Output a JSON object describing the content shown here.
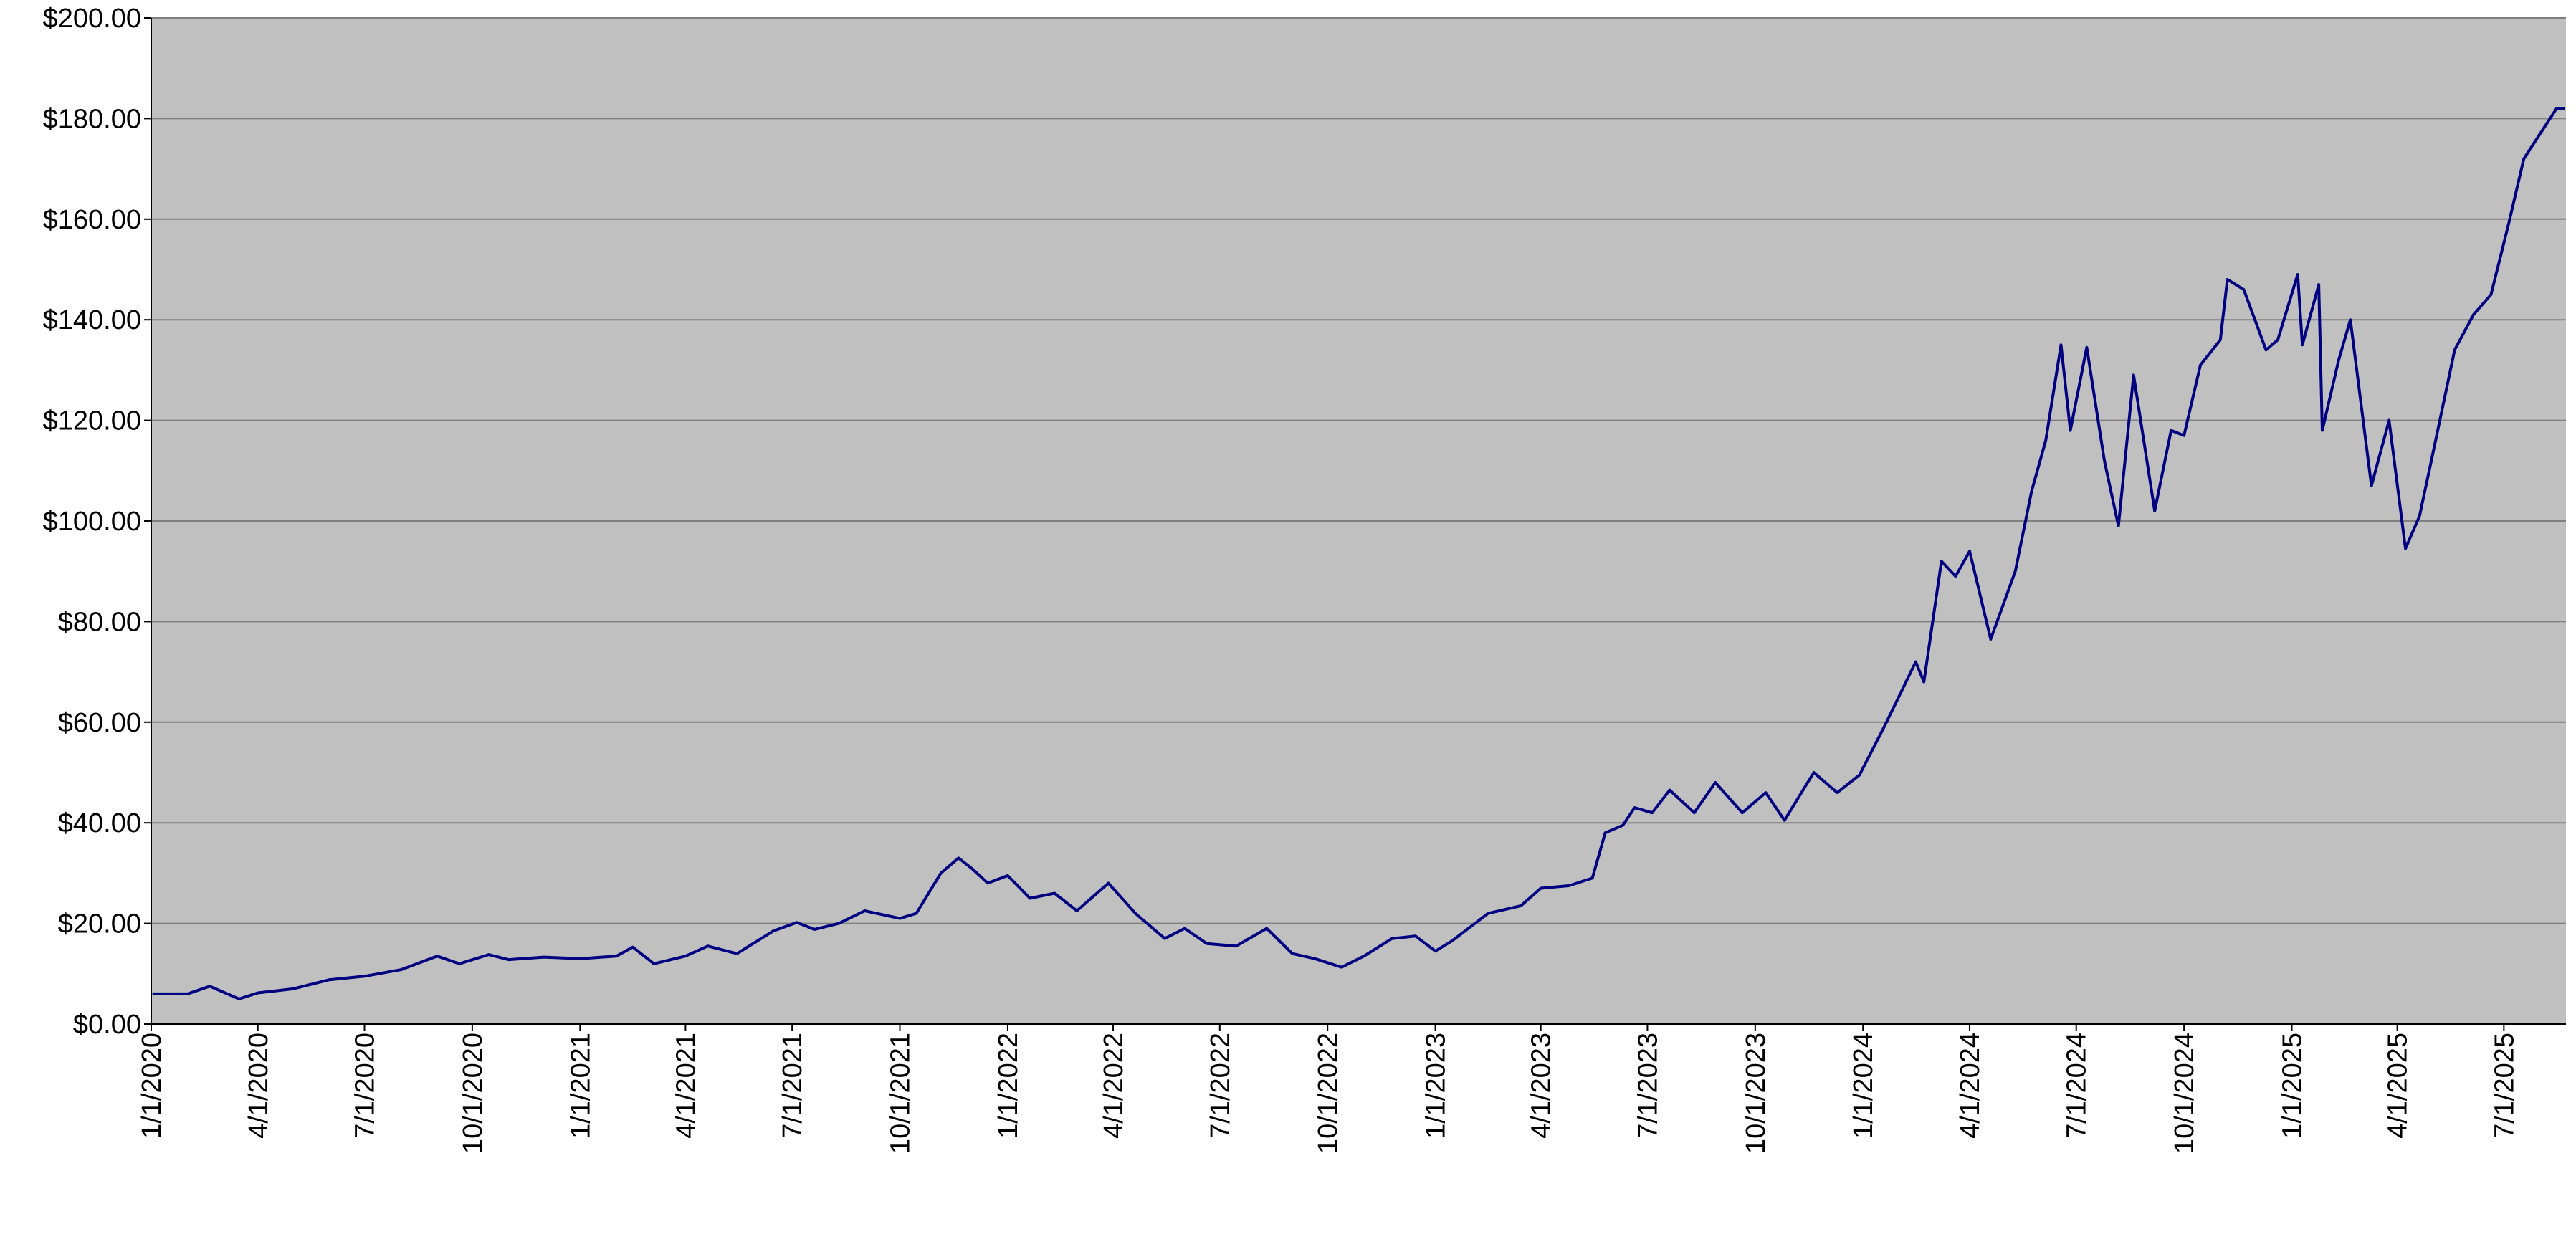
{
  "chart_data": {
    "type": "line",
    "x": [
      "2020-01-02",
      "2020-02-01",
      "2020-02-20",
      "2020-03-16",
      "2020-04-01",
      "2020-05-01",
      "2020-06-01",
      "2020-07-01",
      "2020-08-01",
      "2020-09-01",
      "2020-09-20",
      "2020-10-15",
      "2020-11-01",
      "2020-12-01",
      "2021-01-01",
      "2021-02-01",
      "2021-02-15",
      "2021-03-05",
      "2021-04-01",
      "2021-04-20",
      "2021-05-15",
      "2021-06-15",
      "2021-07-05",
      "2021-07-20",
      "2021-08-10",
      "2021-09-01",
      "2021-10-01",
      "2021-10-15",
      "2021-11-05",
      "2021-11-20",
      "2021-12-01",
      "2021-12-15",
      "2022-01-01",
      "2022-01-20",
      "2022-02-10",
      "2022-03-01",
      "2022-03-28",
      "2022-04-20",
      "2022-05-15",
      "2022-06-01",
      "2022-06-20",
      "2022-07-15",
      "2022-08-10",
      "2022-09-01",
      "2022-09-20",
      "2022-10-13",
      "2022-11-01",
      "2022-11-25",
      "2022-12-15",
      "2023-01-01",
      "2023-01-15",
      "2023-02-15",
      "2023-03-15",
      "2023-04-01",
      "2023-04-25",
      "2023-05-15",
      "2023-05-26",
      "2023-06-10",
      "2023-06-20",
      "2023-07-05",
      "2023-07-20",
      "2023-08-10",
      "2023-08-28",
      "2023-09-20",
      "2023-10-10",
      "2023-10-26",
      "2023-11-20",
      "2023-12-10",
      "2023-12-29",
      "2024-01-20",
      "2024-02-15",
      "2024-02-22",
      "2024-03-08",
      "2024-03-20",
      "2024-04-01",
      "2024-04-19",
      "2024-05-10",
      "2024-05-24",
      "2024-06-05",
      "2024-06-18",
      "2024-06-26",
      "2024-07-10",
      "2024-07-25",
      "2024-08-06",
      "2024-08-19",
      "2024-09-06",
      "2024-09-20",
      "2024-10-01",
      "2024-10-15",
      "2024-11-01",
      "2024-11-07",
      "2024-11-21",
      "2024-12-10",
      "2024-12-20",
      "2025-01-06",
      "2025-01-10",
      "2025-01-24",
      "2025-01-27",
      "2025-02-10",
      "2025-02-20",
      "2025-03-10",
      "2025-03-25",
      "2025-04-08",
      "2025-04-20",
      "2025-05-01",
      "2025-05-20",
      "2025-06-05",
      "2025-06-20",
      "2025-07-05",
      "2025-07-18",
      "2025-08-01",
      "2025-08-15",
      "2025-08-22"
    ],
    "series": [
      {
        "color": "#000080",
        "values": [
          6.0,
          6.0,
          7.5,
          5.0,
          6.2,
          7.0,
          8.8,
          9.5,
          10.8,
          13.5,
          12.0,
          13.8,
          12.8,
          13.3,
          13.0,
          13.5,
          15.3,
          12.0,
          13.5,
          15.5,
          14.0,
          18.5,
          20.2,
          18.8,
          20.0,
          22.5,
          21.0,
          22.0,
          30.0,
          33.0,
          31.0,
          28.0,
          29.5,
          25.0,
          26.0,
          22.5,
          28.0,
          22.0,
          17.0,
          19.0,
          16.0,
          15.5,
          19.0,
          14.0,
          13.0,
          11.3,
          13.5,
          17.0,
          17.5,
          14.5,
          16.5,
          22.0,
          23.5,
          27.0,
          27.5,
          29.0,
          38.0,
          39.5,
          43.0,
          42.0,
          46.5,
          42.0,
          48.0,
          42.0,
          46.0,
          40.5,
          50.0,
          46.0,
          49.5,
          59.5,
          72.0,
          68.0,
          92.0,
          89.0,
          94.0,
          76.5,
          90.0,
          106.0,
          116.0,
          135.0,
          118.0,
          134.5,
          112.0,
          99.0,
          129.0,
          102.0,
          118.0,
          117.0,
          131.0,
          136.0,
          148.0,
          146.0,
          134.0,
          136.0,
          149.0,
          135.0,
          147.0,
          118.0,
          132.0,
          140.0,
          107.0,
          120.0,
          94.5,
          101.0,
          113.0,
          134.0,
          141.0,
          145.0,
          159.0,
          172.0,
          177.0,
          182.0,
          182.0
        ]
      }
    ],
    "xlim": [
      "2020-01-01",
      "2025-08-23"
    ],
    "xticks": [
      {
        "value": "2020-01-01",
        "label": "1/1/2020"
      },
      {
        "value": "2020-04-01",
        "label": "4/1/2020"
      },
      {
        "value": "2020-07-01",
        "label": "7/1/2020"
      },
      {
        "value": "2020-10-01",
        "label": "10/1/2020"
      },
      {
        "value": "2021-01-01",
        "label": "1/1/2021"
      },
      {
        "value": "2021-04-01",
        "label": "4/1/2021"
      },
      {
        "value": "2021-07-01",
        "label": "7/1/2021"
      },
      {
        "value": "2021-10-01",
        "label": "10/1/2021"
      },
      {
        "value": "2022-01-01",
        "label": "1/1/2022"
      },
      {
        "value": "2022-04-01",
        "label": "4/1/2022"
      },
      {
        "value": "2022-07-01",
        "label": "7/1/2022"
      },
      {
        "value": "2022-10-01",
        "label": "10/1/2022"
      },
      {
        "value": "2023-01-01",
        "label": "1/1/2023"
      },
      {
        "value": "2023-04-01",
        "label": "4/1/2023"
      },
      {
        "value": "2023-07-01",
        "label": "7/1/2023"
      },
      {
        "value": "2023-10-01",
        "label": "10/1/2023"
      },
      {
        "value": "2024-01-01",
        "label": "1/1/2024"
      },
      {
        "value": "2024-04-01",
        "label": "4/1/2024"
      },
      {
        "value": "2024-07-01",
        "label": "7/1/2024"
      },
      {
        "value": "2024-10-01",
        "label": "10/1/2024"
      },
      {
        "value": "2025-01-01",
        "label": "1/1/2025"
      },
      {
        "value": "2025-04-01",
        "label": "4/1/2025"
      },
      {
        "value": "2025-07-01",
        "label": "7/1/2025"
      }
    ],
    "ylim": [
      0,
      200
    ],
    "yticks": [
      {
        "value": 0,
        "label": "$0.00"
      },
      {
        "value": 20,
        "label": "$20.00"
      },
      {
        "value": 40,
        "label": "$40.00"
      },
      {
        "value": 60,
        "label": "$60.00"
      },
      {
        "value": 80,
        "label": "$80.00"
      },
      {
        "value": 100,
        "label": "$100.00"
      },
      {
        "value": 120,
        "label": "$120.00"
      },
      {
        "value": 140,
        "label": "$140.00"
      },
      {
        "value": 160,
        "label": "$160.00"
      },
      {
        "value": 180,
        "label": "$180.00"
      },
      {
        "value": 200,
        "label": "$200.00"
      }
    ],
    "grid": true,
    "background": "#c0c0c0"
  }
}
